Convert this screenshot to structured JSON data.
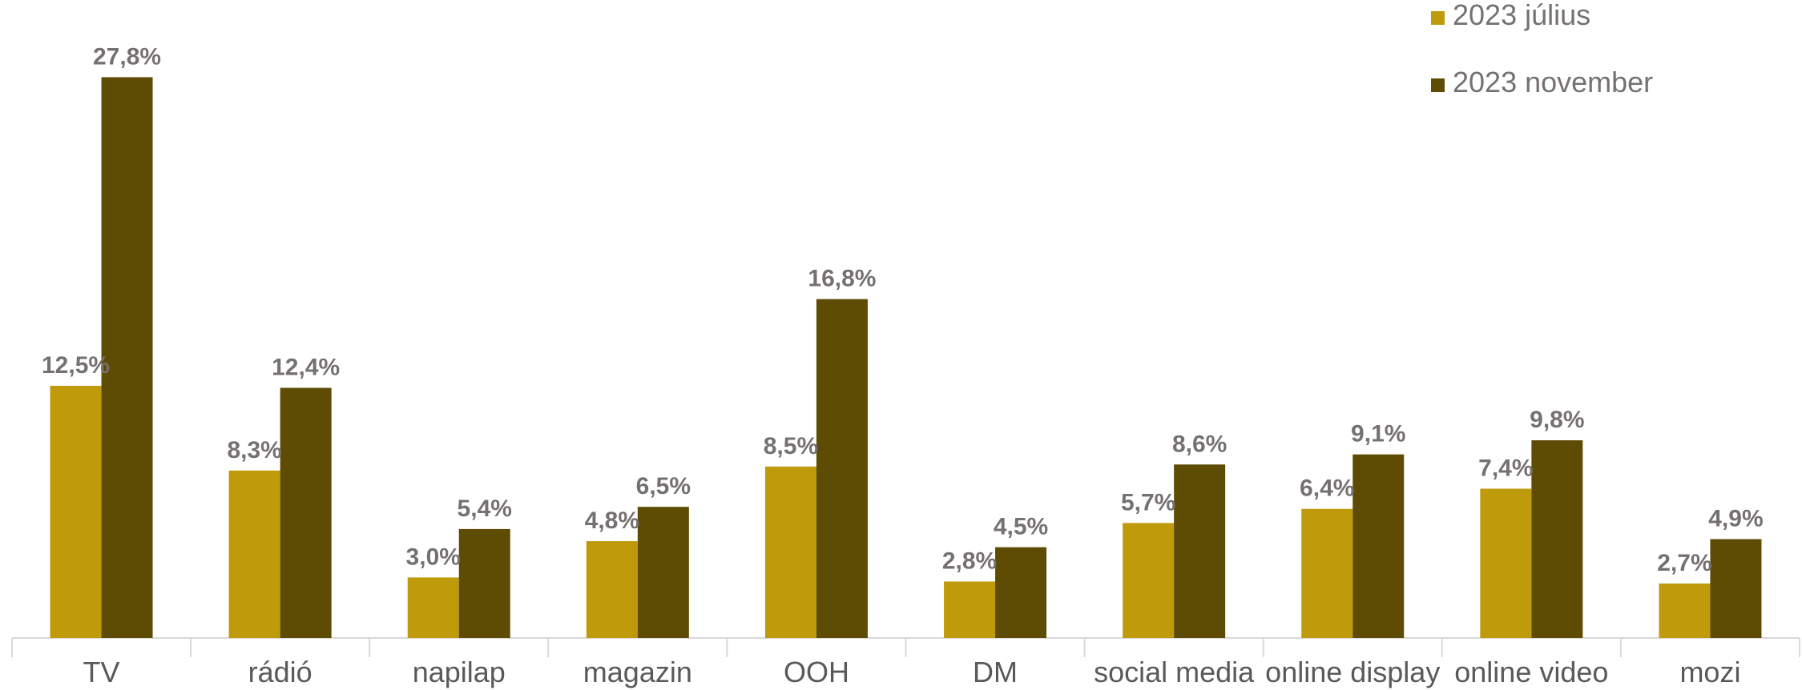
{
  "chart_data": {
    "type": "bar",
    "title": "",
    "xlabel": "",
    "ylabel": "",
    "ylim": [
      0,
      30
    ],
    "grid": false,
    "legend_position": "top-right",
    "categories": [
      "TV",
      "rádió",
      "napilap",
      "magazin",
      "OOH",
      "DM",
      "social media",
      "online display",
      "online video",
      "mozi"
    ],
    "series": [
      {
        "name": "2023 július",
        "color": "#BF9B0B",
        "values": [
          12.5,
          8.3,
          3.0,
          4.8,
          8.5,
          2.8,
          5.7,
          6.4,
          7.4,
          2.7
        ],
        "labels": [
          "12,5%",
          "8,3%",
          "3,0%",
          "4,8%",
          "8,5%",
          "2,8%",
          "5,7%",
          "6,4%",
          "7,4%",
          "2,7%"
        ]
      },
      {
        "name": "2023 november",
        "color": "#5E4C05",
        "values": [
          27.8,
          12.4,
          5.4,
          6.5,
          16.8,
          4.5,
          8.6,
          9.1,
          9.8,
          4.9
        ],
        "labels": [
          "27,8%",
          "12,4%",
          "5,4%",
          "6,5%",
          "16,8%",
          "4,5%",
          "8,6%",
          "9,1%",
          "9,8%",
          "4,9%"
        ]
      }
    ]
  }
}
